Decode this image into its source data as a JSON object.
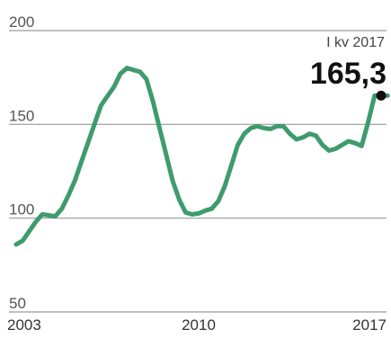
{
  "chart_data": {
    "type": "line",
    "title": "",
    "xlabel": "",
    "ylabel": "",
    "ylim": [
      50,
      200
    ],
    "yticks": [
      50,
      100,
      150,
      200
    ],
    "xlim": [
      2003,
      2017.25
    ],
    "xticks": [
      "2003",
      "2010",
      "2017"
    ],
    "grid": true,
    "series": [
      {
        "color": "#3e9b6e",
        "x": [
          2003.0,
          2003.25,
          2003.5,
          2003.75,
          2004.0,
          2004.25,
          2004.5,
          2004.75,
          2005.0,
          2005.25,
          2005.5,
          2005.75,
          2006.0,
          2006.25,
          2006.5,
          2006.75,
          2007.0,
          2007.25,
          2007.5,
          2007.75,
          2008.0,
          2008.25,
          2008.5,
          2008.75,
          2009.0,
          2009.25,
          2009.5,
          2009.75,
          2010.0,
          2010.25,
          2010.5,
          2010.75,
          2011.0,
          2011.25,
          2011.5,
          2011.75,
          2012.0,
          2012.25,
          2012.5,
          2012.75,
          2013.0,
          2013.25,
          2013.5,
          2013.75,
          2014.0,
          2014.25,
          2014.5,
          2014.75,
          2015.0,
          2015.25,
          2015.5,
          2015.75,
          2016.0,
          2016.25,
          2016.5,
          2016.75,
          2017.0,
          2017.25
        ],
        "values": [
          86,
          88,
          93,
          98,
          102,
          101.5,
          101,
          105,
          112,
          120,
          130,
          140,
          150,
          160,
          165,
          170,
          177,
          180,
          179,
          178,
          174,
          162,
          148,
          134,
          120,
          110,
          103,
          102,
          102.5,
          104,
          105,
          109,
          117,
          128,
          139,
          145,
          148,
          149,
          148,
          147.5,
          149,
          149,
          145,
          142,
          143,
          145,
          144,
          139,
          136,
          137,
          139,
          141,
          140,
          138.5,
          151,
          165.3,
          165.3,
          165.3
        ]
      }
    ],
    "annotation": {
      "label": "I kv 2017",
      "value": "165,3",
      "x": 2017.0,
      "y": 165.3
    }
  }
}
